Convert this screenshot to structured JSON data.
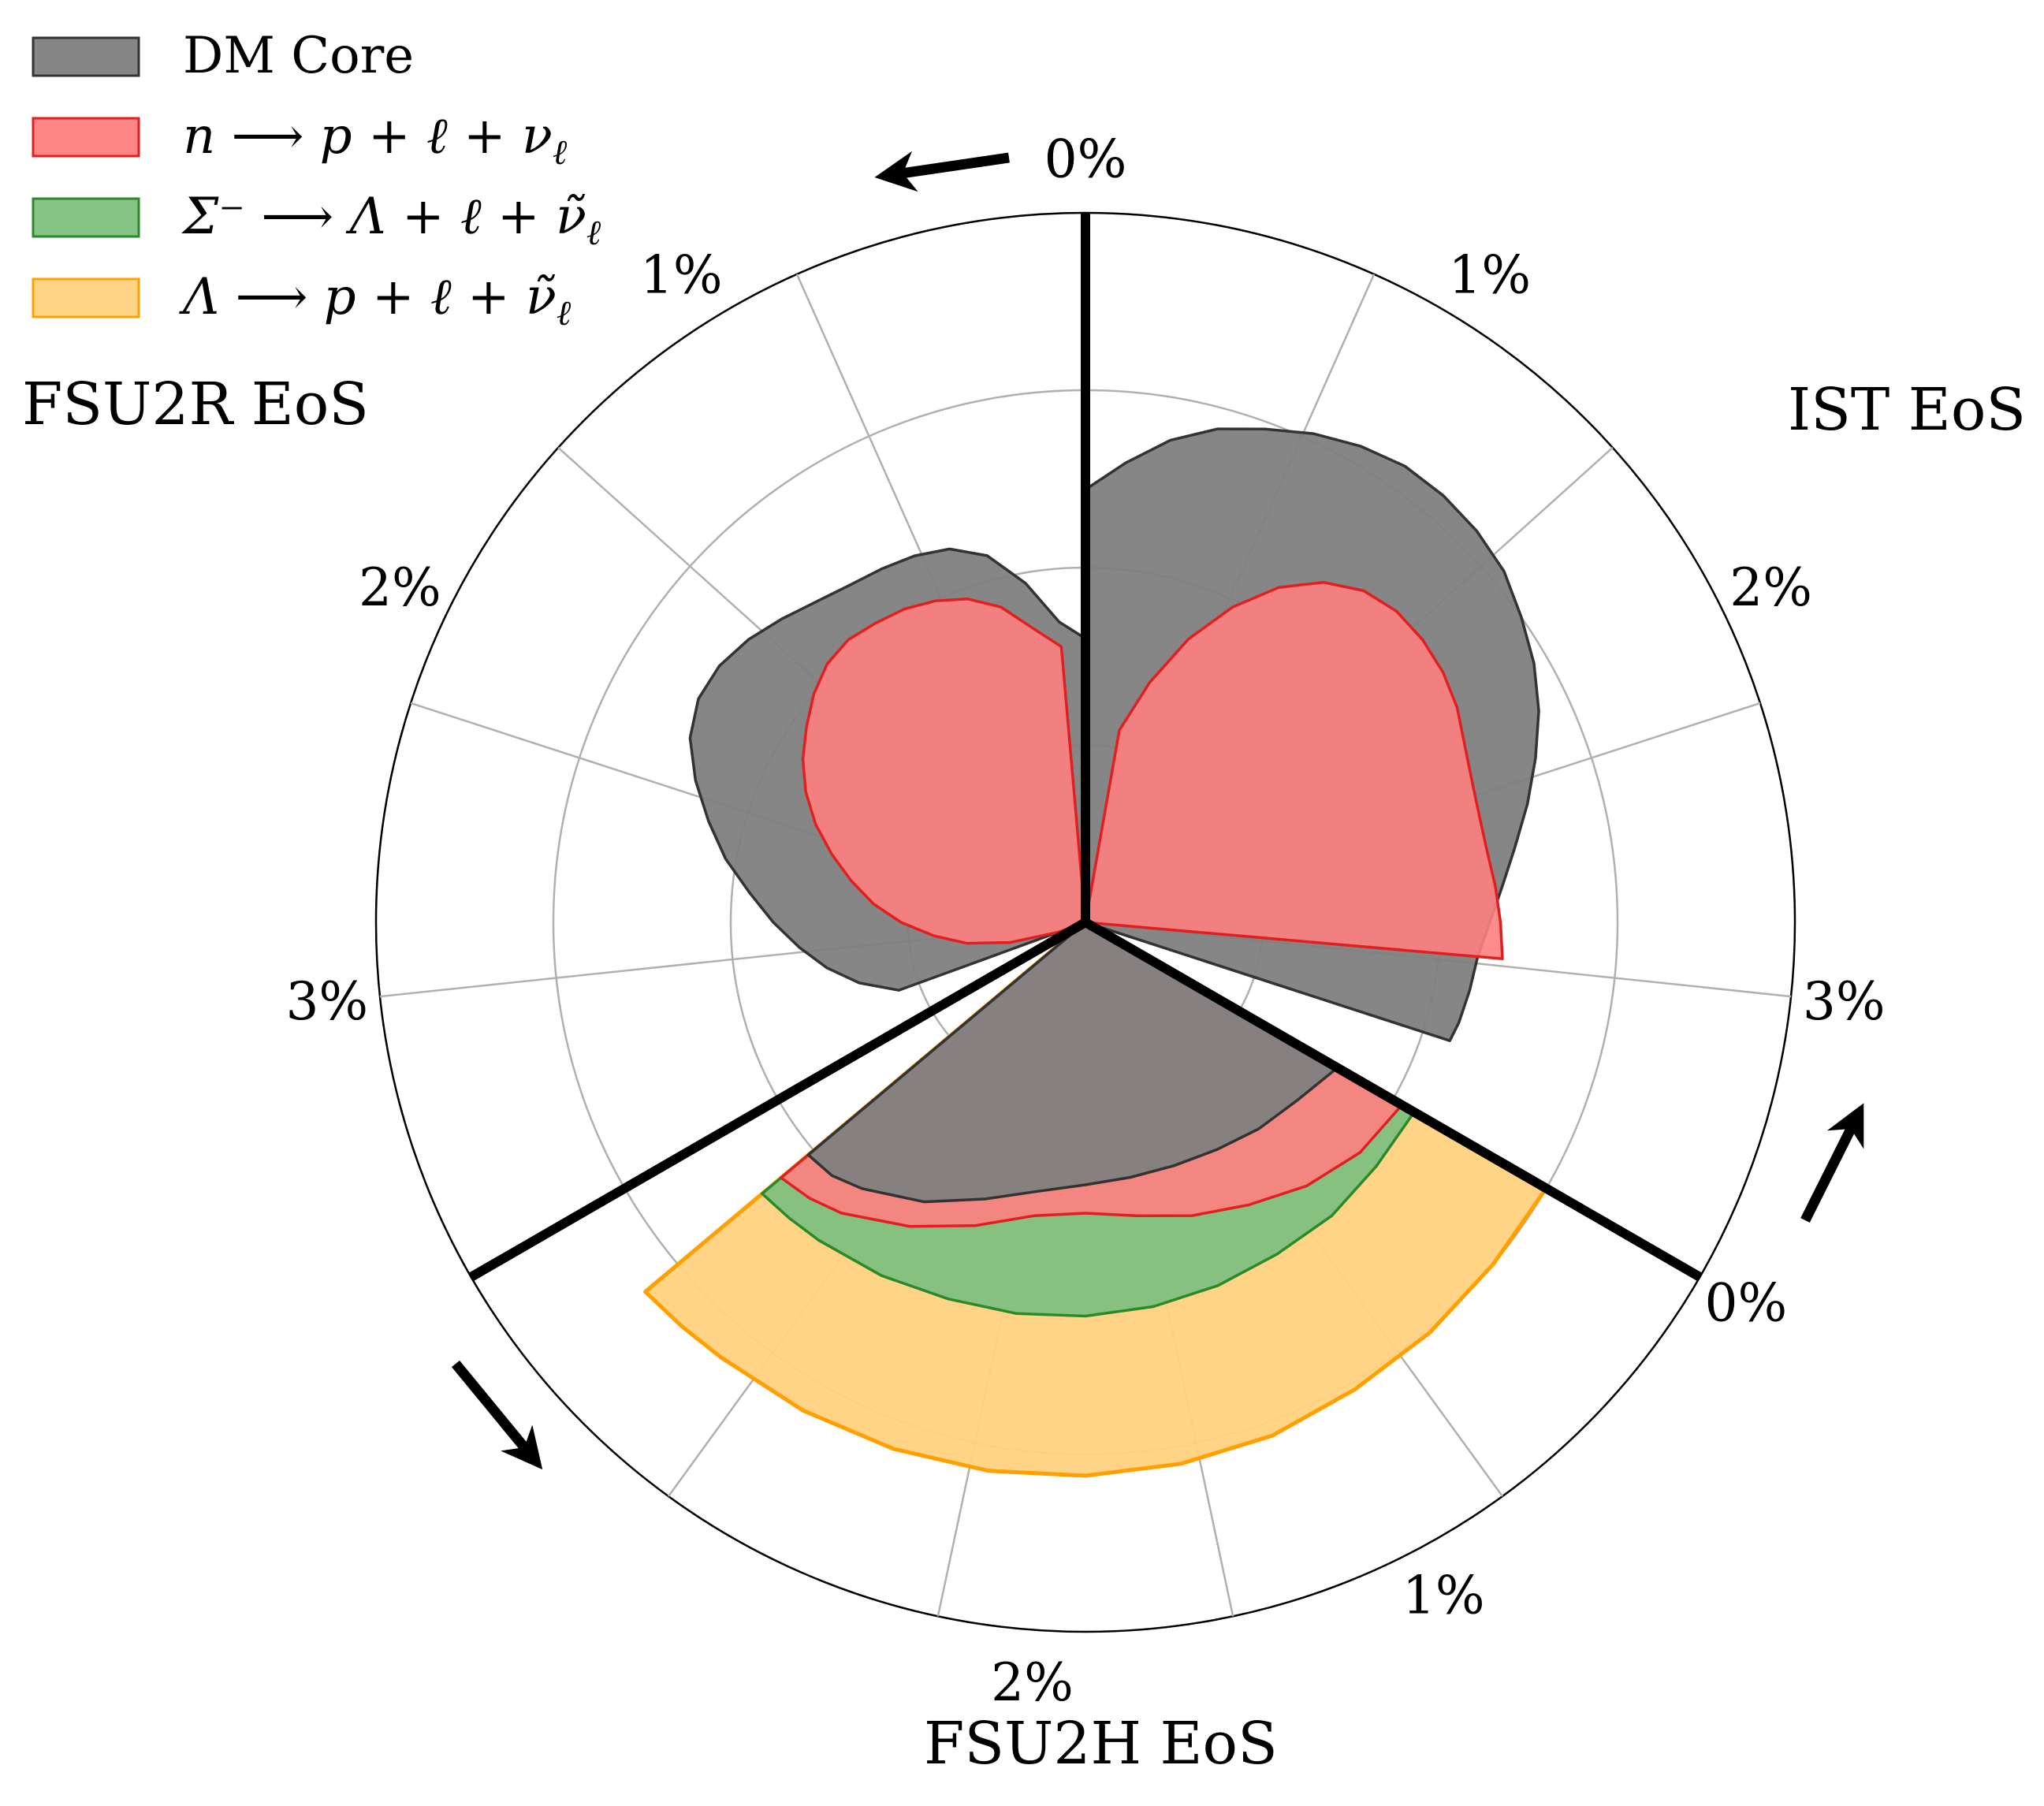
{
  "chart_data": {
    "type": "polar-area",
    "radial_grid": [
      0,
      0.5,
      1.0,
      1.5,
      2.0
    ],
    "radial_max": 2.0,
    "legend": {
      "position": "top-left",
      "entries": [
        {
          "key": "dm",
          "label": "DM Core",
          "color": "#808080"
        },
        {
          "key": "beta_n",
          "label": "n ⟶ p + ℓ + ν",
          "sub": "ℓ",
          "color": "#ff7f7f"
        },
        {
          "key": "beta_sigma",
          "label": "Σ⁻ ⟶ Λ + ℓ + ν̃",
          "sub": "ℓ",
          "color": "#80c080"
        },
        {
          "key": "beta_lambda",
          "label": "Λ ⟶ p + ℓ + ν̃",
          "sub": "ℓ",
          "color": "#ffd27f"
        }
      ]
    },
    "sectors": [
      {
        "name": "IST EoS",
        "start_angle_deg": 0,
        "end_angle_deg": 120,
        "direction": "counterclockwise",
        "tick_labels": [
          "0%",
          "1%",
          "2%",
          "3%"
        ],
        "series": {
          "dm": [
            [
              0.0,
              1.22
            ],
            [
              5,
              1.3
            ],
            [
              10,
              1.38
            ],
            [
              15,
              1.44
            ],
            [
              20,
              1.48
            ],
            [
              25,
              1.52
            ],
            [
              30,
              1.55
            ],
            [
              35,
              1.57
            ],
            [
              40,
              1.57
            ],
            [
              45,
              1.56
            ],
            [
              50,
              1.54
            ],
            [
              55,
              1.5
            ],
            [
              60,
              1.46
            ],
            [
              65,
              1.41
            ],
            [
              70,
              1.35
            ],
            [
              75,
              1.29
            ],
            [
              80,
              1.23
            ],
            [
              85,
              1.18
            ],
            [
              90,
              1.14
            ],
            [
              95,
              1.11
            ],
            [
              100,
              1.1
            ],
            [
              105,
              1.09
            ],
            [
              108,
              1.08
            ]
          ],
          "beta_n": [
            [
              10,
              0.55
            ],
            [
              15,
              0.7
            ],
            [
              20,
              0.85
            ],
            [
              25,
              0.98
            ],
            [
              30,
              1.09
            ],
            [
              35,
              1.17
            ],
            [
              40,
              1.22
            ],
            [
              45,
              1.24
            ],
            [
              50,
              1.24
            ],
            [
              55,
              1.23
            ],
            [
              60,
              1.21
            ],
            [
              65,
              1.18
            ],
            [
              70,
              1.16
            ],
            [
              75,
              1.15
            ],
            [
              80,
              1.15
            ],
            [
              85,
              1.16
            ],
            [
              90,
              1.17
            ],
            [
              95,
              1.18
            ]
          ]
        }
      },
      {
        "name": "FSU2H EoS",
        "start_angle_deg": 120,
        "end_angle_deg": 240,
        "direction": "counterclockwise",
        "tick_labels": [
          "0%",
          "1%",
          "2%"
        ],
        "series": {
          "dm": [
            [
              0,
              0.82
            ],
            [
              10,
              0.78
            ],
            [
              20,
              0.76
            ],
            [
              30,
              0.74
            ],
            [
              40,
              0.73
            ],
            [
              50,
              0.73
            ],
            [
              60,
              0.74
            ],
            [
              70,
              0.77
            ],
            [
              80,
              0.83
            ],
            [
              90,
              0.91
            ],
            [
              100,
              0.98
            ],
            [
              105,
              1.01
            ],
            [
              110,
              1.02
            ]
          ],
          "beta_n": [
            [
              0,
              1.03
            ],
            [
              10,
              1.01
            ],
            [
              20,
              0.97
            ],
            [
              30,
              0.92
            ],
            [
              40,
              0.88
            ],
            [
              50,
              0.84
            ],
            [
              60,
              0.82
            ],
            [
              70,
              0.84
            ],
            [
              80,
              0.91
            ],
            [
              90,
              0.99
            ],
            [
              100,
              1.07
            ],
            [
              105,
              1.1
            ],
            [
              110,
              1.12
            ]
          ],
          "beta_sigma": [
            [
              0,
              1.07
            ],
            [
              10,
              1.07
            ],
            [
              20,
              1.08
            ],
            [
              30,
              1.08
            ],
            [
              40,
              1.09
            ],
            [
              50,
              1.1
            ],
            [
              60,
              1.11
            ],
            [
              70,
              1.12
            ],
            [
              80,
              1.13
            ],
            [
              90,
              1.15
            ],
            [
              100,
              1.17
            ],
            [
              105,
              1.18
            ],
            [
              110,
              1.19
            ]
          ],
          "beta_lambda": [
            [
              0,
              1.5
            ],
            [
              10,
              1.5
            ],
            [
              20,
              1.51
            ],
            [
              30,
              1.52
            ],
            [
              40,
              1.54
            ],
            [
              50,
              1.55
            ],
            [
              60,
              1.56
            ],
            [
              70,
              1.57
            ],
            [
              80,
              1.58
            ],
            [
              90,
              1.59
            ],
            [
              100,
              1.6
            ],
            [
              105,
              1.61
            ],
            [
              110,
              1.62
            ]
          ]
        }
      },
      {
        "name": "FSU2R EoS",
        "start_angle_deg": 240,
        "end_angle_deg": 360,
        "direction": "clockwise",
        "tick_labels": [
          "0%",
          "1%",
          "2%",
          "3%"
        ],
        "series": {
          "dm": [
            [
              0,
              0.8
            ],
            [
              5,
              0.85
            ],
            [
              10,
              0.97
            ],
            [
              15,
              1.07
            ],
            [
              20,
              1.12
            ],
            [
              25,
              1.14
            ],
            [
              30,
              1.15
            ],
            [
              35,
              1.16
            ],
            [
              40,
              1.18
            ],
            [
              45,
              1.21
            ],
            [
              50,
              1.24
            ],
            [
              55,
              1.26
            ],
            [
              60,
              1.26
            ],
            [
              65,
              1.23
            ],
            [
              70,
              1.17
            ],
            [
              75,
              1.1
            ],
            [
              80,
              1.03
            ],
            [
              85,
              0.95
            ],
            [
              90,
              0.88
            ],
            [
              95,
              0.81
            ],
            [
              100,
              0.74
            ],
            [
              105,
              0.66
            ],
            [
              110,
              0.56
            ]
          ],
          "beta_n": [
            [
              5,
              0.78
            ],
            [
              10,
              0.84
            ],
            [
              15,
              0.92
            ],
            [
              20,
              0.97
            ],
            [
              25,
              1.0
            ],
            [
              30,
              1.02
            ],
            [
              35,
              1.03
            ],
            [
              40,
              1.04
            ],
            [
              45,
              1.03
            ],
            [
              50,
              1.0
            ],
            [
              55,
              0.96
            ],
            [
              60,
              0.92
            ],
            [
              65,
              0.87
            ],
            [
              70,
              0.81
            ],
            [
              75,
              0.74
            ],
            [
              80,
              0.67
            ],
            [
              85,
              0.6
            ],
            [
              90,
              0.52
            ],
            [
              95,
              0.43
            ],
            [
              100,
              0.34
            ],
            [
              105,
              0.22
            ],
            [
              110,
              0.08
            ]
          ]
        }
      }
    ]
  },
  "labels": {
    "eos_ist": "IST EoS",
    "eos_fsu2h": "FSU2H EoS",
    "eos_fsu2r": "FSU2R EoS"
  }
}
